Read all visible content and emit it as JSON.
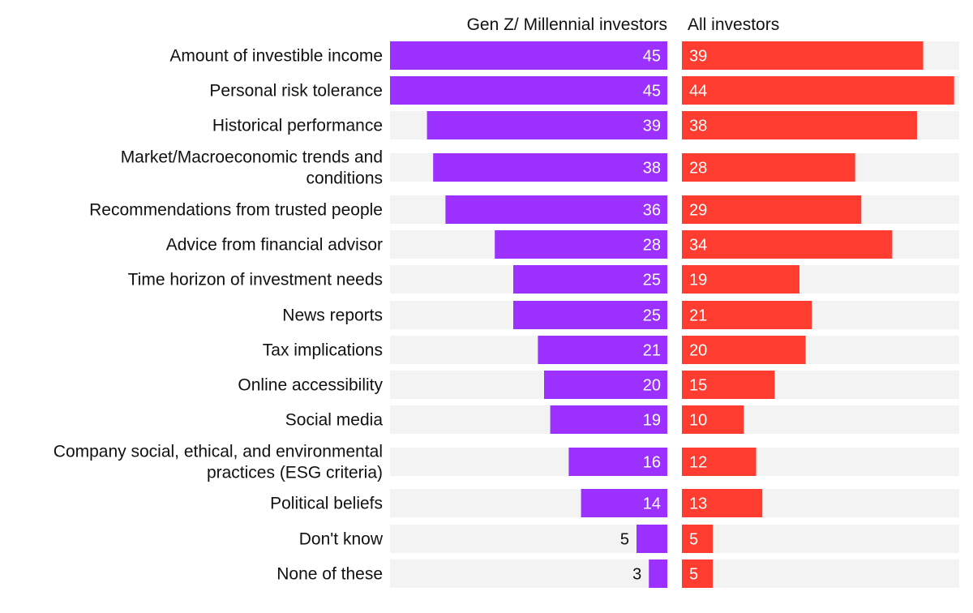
{
  "chart_data": {
    "type": "bar",
    "orientation": "horizontal",
    "layout": "back-to-back",
    "title": "",
    "categories": [
      "Amount of investible income",
      "Personal risk tolerance",
      "Historical performance",
      "Market/Macroeconomic trends and conditions",
      "Recommendations from trusted people",
      "Advice from financial advisor",
      "Time horizon of investment needs",
      "News reports",
      "Tax implications",
      "Online accessibility",
      "Social media",
      "Company social, ethical, and environmental practices (ESG criteria)",
      "Political beliefs",
      "Don't know",
      "None of these"
    ],
    "category_lines": [
      [
        "Amount of investible income"
      ],
      [
        "Personal risk tolerance"
      ],
      [
        "Historical performance"
      ],
      [
        "Market/Macroeconomic trends and",
        "conditions"
      ],
      [
        "Recommendations from trusted people"
      ],
      [
        "Advice from financial advisor"
      ],
      [
        "Time horizon of investment needs"
      ],
      [
        "News reports"
      ],
      [
        "Tax implications"
      ],
      [
        "Online accessibility"
      ],
      [
        "Social media"
      ],
      [
        "Company social, ethical, and environmental",
        "practices (ESG criteria)"
      ],
      [
        "Political beliefs"
      ],
      [
        "Don't know"
      ],
      [
        "None of these"
      ]
    ],
    "series": [
      {
        "name": "Gen Z/ Millennial investors",
        "color": "#9b30ff",
        "direction": "left",
        "values": [
          45,
          45,
          39,
          38,
          36,
          28,
          25,
          25,
          21,
          20,
          19,
          16,
          14,
          5,
          3
        ]
      },
      {
        "name": "All investors",
        "color": "#ff3c2f",
        "direction": "right",
        "values": [
          39,
          44,
          38,
          28,
          29,
          34,
          19,
          21,
          20,
          15,
          10,
          12,
          13,
          5,
          5
        ]
      }
    ],
    "xlim": [
      0,
      45
    ],
    "track_color": "#f3f3f3",
    "grid": false,
    "legend": "top"
  }
}
